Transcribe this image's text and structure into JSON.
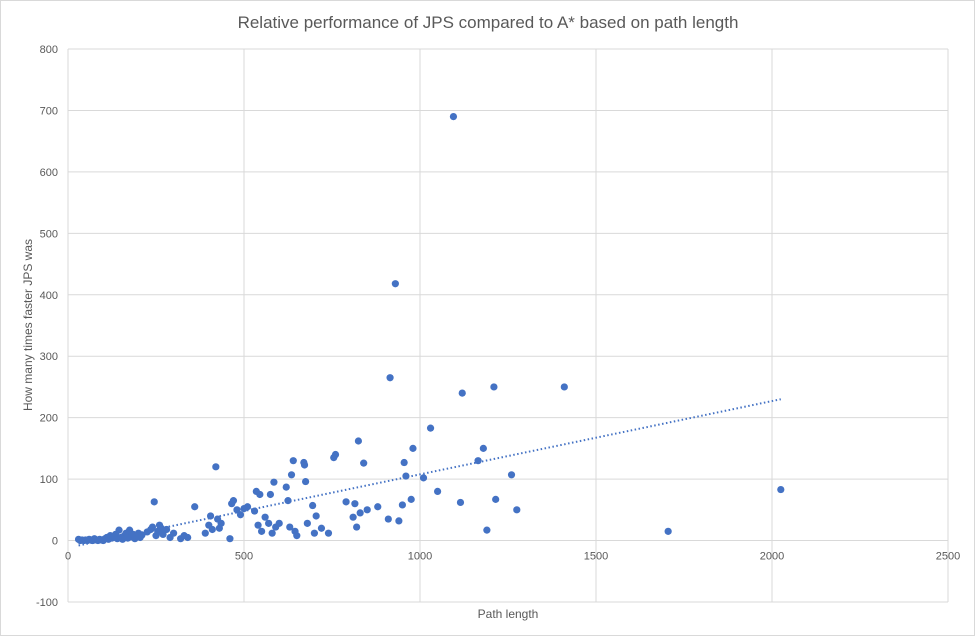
{
  "chart_data": {
    "type": "scatter",
    "title": "Relative performance of JPS compared to A* based on path length",
    "xlabel": "Path length",
    "ylabel": "How many times faster JPS was",
    "xlim": [
      0,
      2500
    ],
    "ylim": [
      -100,
      800
    ],
    "x_ticks": [
      0,
      500,
      1000,
      1500,
      2000,
      2500
    ],
    "y_ticks": [
      -100,
      0,
      100,
      200,
      300,
      400,
      500,
      600,
      700,
      800
    ],
    "grid": true,
    "legend": "none",
    "colors": {
      "points": "#4472c4",
      "trendline": "#4472c4",
      "grid": "#d9d9d9",
      "text": "#595959"
    },
    "trendline": {
      "style": "dotted",
      "x": [
        30,
        2025
      ],
      "y": [
        -8,
        230
      ]
    },
    "points": [
      [
        30,
        2
      ],
      [
        35,
        0
      ],
      [
        40,
        1
      ],
      [
        45,
        0
      ],
      [
        50,
        1
      ],
      [
        55,
        0
      ],
      [
        60,
        2
      ],
      [
        65,
        1
      ],
      [
        70,
        0
      ],
      [
        75,
        3
      ],
      [
        80,
        1
      ],
      [
        85,
        0
      ],
      [
        90,
        2
      ],
      [
        95,
        1
      ],
      [
        100,
        0
      ],
      [
        105,
        3
      ],
      [
        110,
        5
      ],
      [
        115,
        2
      ],
      [
        120,
        8
      ],
      [
        125,
        4
      ],
      [
        130,
        6
      ],
      [
        135,
        10
      ],
      [
        140,
        3
      ],
      [
        145,
        17
      ],
      [
        150,
        5
      ],
      [
        155,
        2
      ],
      [
        160,
        8
      ],
      [
        165,
        12
      ],
      [
        170,
        4
      ],
      [
        175,
        17
      ],
      [
        180,
        6
      ],
      [
        185,
        10
      ],
      [
        190,
        3
      ],
      [
        195,
        8
      ],
      [
        200,
        12
      ],
      [
        205,
        5
      ],
      [
        210,
        9
      ],
      [
        225,
        14
      ],
      [
        235,
        18
      ],
      [
        240,
        22
      ],
      [
        245,
        63
      ],
      [
        250,
        8
      ],
      [
        255,
        15
      ],
      [
        260,
        25
      ],
      [
        265,
        20
      ],
      [
        270,
        10
      ],
      [
        280,
        18
      ],
      [
        290,
        5
      ],
      [
        300,
        12
      ],
      [
        320,
        3
      ],
      [
        330,
        8
      ],
      [
        340,
        5
      ],
      [
        360,
        55
      ],
      [
        390,
        12
      ],
      [
        400,
        25
      ],
      [
        405,
        40
      ],
      [
        410,
        18
      ],
      [
        420,
        120
      ],
      [
        425,
        35
      ],
      [
        430,
        20
      ],
      [
        435,
        28
      ],
      [
        460,
        3
      ],
      [
        465,
        60
      ],
      [
        470,
        65
      ],
      [
        480,
        50
      ],
      [
        490,
        42
      ],
      [
        500,
        52
      ],
      [
        510,
        55
      ],
      [
        530,
        48
      ],
      [
        535,
        80
      ],
      [
        540,
        25
      ],
      [
        545,
        75
      ],
      [
        550,
        15
      ],
      [
        560,
        38
      ],
      [
        570,
        28
      ],
      [
        575,
        75
      ],
      [
        580,
        12
      ],
      [
        585,
        95
      ],
      [
        590,
        22
      ],
      [
        600,
        28
      ],
      [
        620,
        87
      ],
      [
        625,
        65
      ],
      [
        630,
        22
      ],
      [
        635,
        107
      ],
      [
        640,
        130
      ],
      [
        645,
        15
      ],
      [
        650,
        8
      ],
      [
        670,
        127
      ],
      [
        672,
        123
      ],
      [
        675,
        96
      ],
      [
        680,
        28
      ],
      [
        695,
        57
      ],
      [
        700,
        12
      ],
      [
        705,
        40
      ],
      [
        720,
        20
      ],
      [
        740,
        12
      ],
      [
        755,
        135
      ],
      [
        760,
        140
      ],
      [
        790,
        63
      ],
      [
        810,
        38
      ],
      [
        815,
        60
      ],
      [
        820,
        22
      ],
      [
        825,
        162
      ],
      [
        830,
        45
      ],
      [
        840,
        126
      ],
      [
        850,
        50
      ],
      [
        880,
        55
      ],
      [
        910,
        35
      ],
      [
        915,
        265
      ],
      [
        930,
        418
      ],
      [
        940,
        32
      ],
      [
        950,
        58
      ],
      [
        955,
        127
      ],
      [
        960,
        105
      ],
      [
        975,
        67
      ],
      [
        980,
        150
      ],
      [
        1010,
        102
      ],
      [
        1030,
        183
      ],
      [
        1050,
        80
      ],
      [
        1095,
        690
      ],
      [
        1115,
        62
      ],
      [
        1120,
        240
      ],
      [
        1165,
        130
      ],
      [
        1180,
        150
      ],
      [
        1190,
        17
      ],
      [
        1210,
        250
      ],
      [
        1215,
        67
      ],
      [
        1260,
        107
      ],
      [
        1275,
        50
      ],
      [
        1410,
        250
      ],
      [
        1705,
        15
      ],
      [
        2025,
        83
      ]
    ]
  }
}
